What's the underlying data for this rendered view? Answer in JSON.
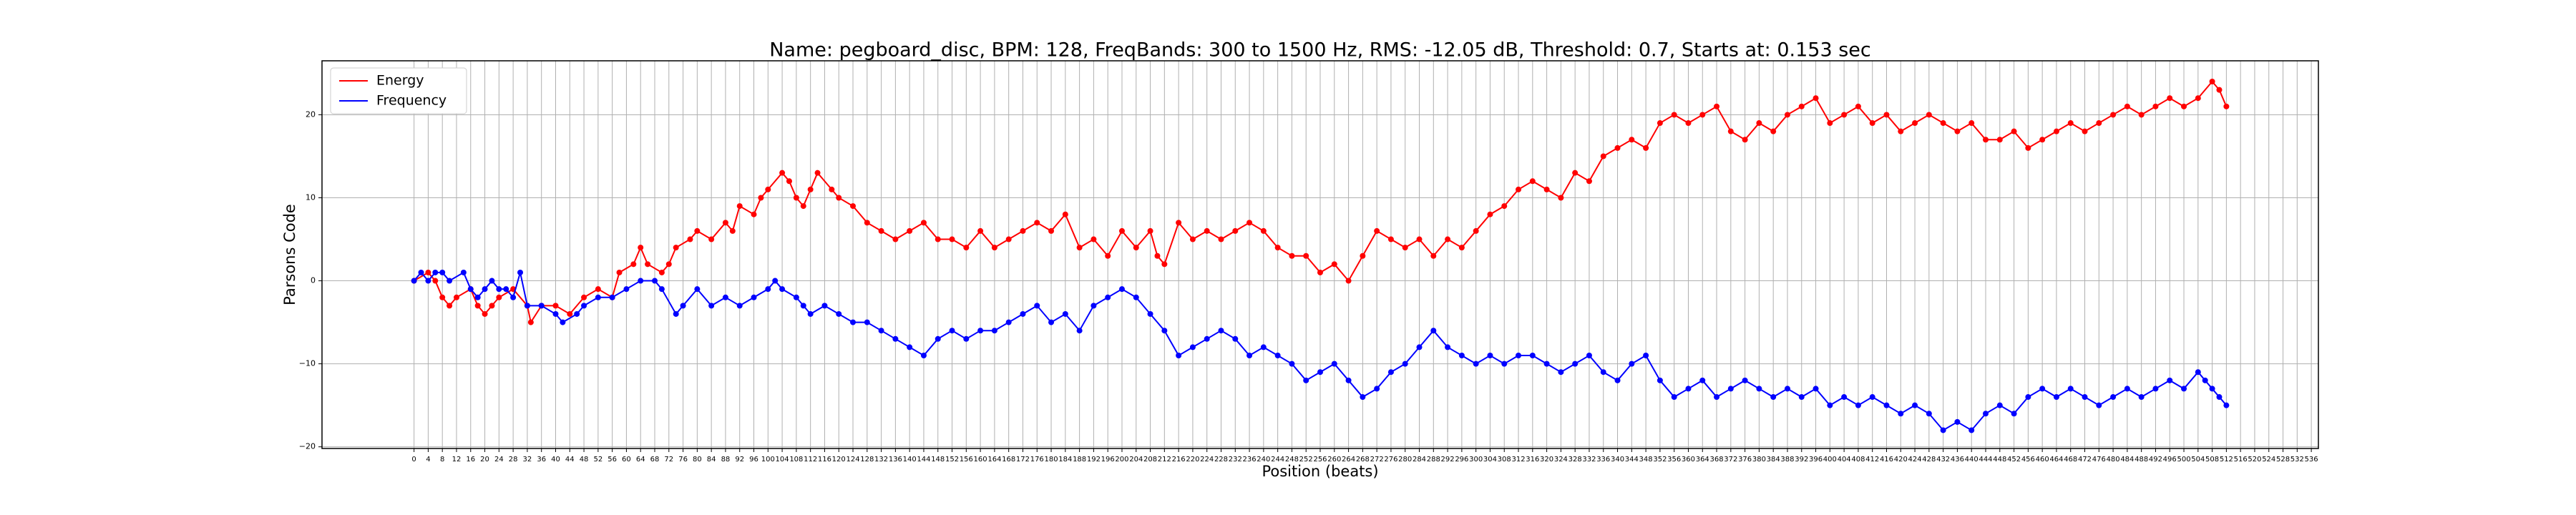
{
  "chart_data": {
    "type": "line",
    "title": "Name: pegboard_disc, BPM: 128, FreqBands: 300 to 1500 Hz, RMS: -12.05 dB, Threshold: 0.7, Starts at: 0.153 sec",
    "x_label": "Position (beats)",
    "y_label": "Parsons Code",
    "xlim": [
      -26,
      538
    ],
    "ylim": [
      -20.2,
      26.5
    ],
    "xticks": [
      0,
      4,
      8,
      12,
      16,
      20,
      24,
      28,
      32,
      36,
      40,
      44,
      48,
      52,
      56,
      60,
      64,
      68,
      72,
      76,
      80,
      84,
      88,
      92,
      96,
      100,
      104,
      108,
      112,
      116,
      120,
      124,
      128,
      132,
      136,
      140,
      144,
      148,
      152,
      156,
      160,
      164,
      168,
      172,
      176,
      180,
      184,
      188,
      192,
      196,
      200,
      204,
      208,
      212,
      216,
      220,
      224,
      228,
      232,
      236,
      240,
      244,
      248,
      252,
      256,
      260,
      264,
      268,
      272,
      276,
      280,
      284,
      288,
      292,
      296,
      300,
      304,
      308,
      312,
      316,
      320,
      324,
      328,
      332,
      336,
      340,
      344,
      348,
      352,
      356,
      360,
      364,
      368,
      372,
      376,
      380,
      384,
      388,
      392,
      396,
      400,
      404,
      408,
      412,
      416,
      420,
      424,
      428,
      432,
      436,
      440,
      444,
      448,
      452,
      456,
      460,
      464,
      468,
      472,
      476,
      480,
      484,
      488,
      492,
      496,
      500,
      504,
      508,
      512,
      516,
      520,
      524,
      528,
      532,
      536
    ],
    "yticks": [
      {
        "value": -20,
        "label": "−20"
      },
      {
        "value": -10,
        "label": "−10"
      },
      0,
      10,
      20
    ],
    "grid": true,
    "legend": "upper left",
    "series": [
      {
        "name": "Energy",
        "color": "#ff0000",
        "x": [
          0,
          4,
          6,
          8,
          10,
          12,
          16,
          18,
          20,
          22,
          24,
          28,
          32,
          33,
          36,
          40,
          44,
          48,
          52,
          56,
          58,
          62,
          64,
          66,
          70,
          72,
          74,
          78,
          80,
          84,
          88,
          90,
          92,
          96,
          98,
          100,
          104,
          106,
          108,
          110,
          112,
          114,
          118,
          120,
          124,
          128,
          132,
          136,
          140,
          144,
          148,
          152,
          156,
          160,
          164,
          168,
          172,
          176,
          180,
          184,
          188,
          192,
          196,
          200,
          204,
          208,
          210,
          212,
          216,
          220,
          224,
          228,
          232,
          236,
          240,
          244,
          248,
          252,
          256,
          260,
          264,
          268,
          272,
          276,
          280,
          284,
          288,
          292,
          296,
          300,
          304,
          308,
          312,
          316,
          320,
          324,
          328,
          332,
          336,
          340,
          344,
          348,
          352,
          356,
          360,
          364,
          368,
          372,
          376,
          380,
          384,
          388,
          392,
          396,
          400,
          404,
          408,
          412,
          416,
          420,
          424,
          428,
          432,
          436,
          440,
          444,
          448,
          452,
          456,
          460,
          464,
          468,
          472,
          476,
          480,
          484,
          488,
          492,
          496,
          500,
          504,
          508,
          510,
          512
        ],
        "values": [
          0,
          1,
          0,
          -2,
          -3,
          -2,
          -1,
          -3,
          -4,
          -3,
          -2,
          -1,
          -3,
          -5,
          -3,
          -3,
          -4,
          -2,
          -1,
          -2,
          1,
          2,
          4,
          2,
          1,
          2,
          4,
          5,
          6,
          5,
          7,
          6,
          9,
          8,
          10,
          11,
          13,
          12,
          10,
          9,
          11,
          13,
          11,
          10,
          9,
          7,
          6,
          5,
          6,
          7,
          5,
          5,
          4,
          6,
          4,
          5,
          6,
          7,
          6,
          8,
          4,
          5,
          3,
          6,
          4,
          6,
          3,
          2,
          7,
          5,
          6,
          5,
          6,
          7,
          6,
          4,
          3,
          3,
          1,
          2,
          0,
          3,
          6,
          5,
          4,
          5,
          3,
          5,
          4,
          6,
          8,
          9,
          11,
          12,
          11,
          10,
          13,
          12,
          15,
          16,
          17,
          16,
          19,
          20,
          19,
          20,
          21,
          18,
          17,
          19,
          18,
          20,
          21,
          22,
          19,
          20,
          21,
          19,
          20,
          18,
          19,
          20,
          19,
          18,
          19,
          17,
          17,
          18,
          16,
          17,
          18,
          19,
          18,
          19,
          20,
          21,
          20,
          21,
          22,
          21,
          22,
          24,
          23,
          21
        ]
      },
      {
        "name": "Frequency",
        "color": "#0000ff",
        "x": [
          0,
          2,
          4,
          6,
          8,
          10,
          14,
          16,
          18,
          20,
          22,
          24,
          26,
          28,
          30,
          32,
          36,
          40,
          42,
          46,
          48,
          52,
          56,
          60,
          64,
          68,
          70,
          74,
          76,
          80,
          84,
          88,
          92,
          96,
          100,
          102,
          104,
          108,
          110,
          112,
          116,
          120,
          124,
          128,
          132,
          136,
          140,
          144,
          148,
          152,
          156,
          160,
          164,
          168,
          172,
          176,
          180,
          184,
          188,
          192,
          196,
          200,
          204,
          208,
          212,
          216,
          220,
          224,
          228,
          232,
          236,
          240,
          244,
          248,
          252,
          256,
          260,
          264,
          268,
          272,
          276,
          280,
          284,
          288,
          292,
          296,
          300,
          304,
          308,
          312,
          316,
          320,
          324,
          328,
          332,
          336,
          340,
          344,
          348,
          352,
          356,
          360,
          364,
          368,
          372,
          376,
          380,
          384,
          388,
          392,
          396,
          400,
          404,
          408,
          412,
          416,
          420,
          424,
          428,
          432,
          436,
          440,
          444,
          448,
          452,
          456,
          460,
          464,
          468,
          472,
          476,
          480,
          484,
          488,
          492,
          496,
          500,
          504,
          506,
          508,
          510,
          512
        ],
        "values": [
          0,
          1,
          0,
          1,
          1,
          0,
          1,
          -1,
          -2,
          -1,
          0,
          -1,
          -1,
          -2,
          1,
          -3,
          -3,
          -4,
          -5,
          -4,
          -3,
          -2,
          -2,
          -1,
          0,
          0,
          -1,
          -4,
          -3,
          -1,
          -3,
          -2,
          -3,
          -2,
          -1,
          0,
          -1,
          -2,
          -3,
          -4,
          -3,
          -4,
          -5,
          -5,
          -6,
          -7,
          -8,
          -9,
          -7,
          -6,
          -7,
          -6,
          -6,
          -5,
          -4,
          -3,
          -5,
          -4,
          -6,
          -3,
          -2,
          -1,
          -2,
          -4,
          -6,
          -9,
          -8,
          -7,
          -6,
          -7,
          -9,
          -8,
          -9,
          -10,
          -12,
          -11,
          -10,
          -12,
          -14,
          -13,
          -11,
          -10,
          -8,
          -6,
          -8,
          -9,
          -10,
          -9,
          -10,
          -9,
          -9,
          -10,
          -11,
          -10,
          -9,
          -11,
          -12,
          -10,
          -9,
          -12,
          -14,
          -13,
          -12,
          -14,
          -13,
          -12,
          -13,
          -14,
          -13,
          -14,
          -13,
          -15,
          -14,
          -15,
          -14,
          -15,
          -16,
          -15,
          -16,
          -18,
          -17,
          -18,
          -16,
          -15,
          -16,
          -14,
          -13,
          -14,
          -13,
          -14,
          -15,
          -14,
          -13,
          -14,
          -13,
          -12,
          -13,
          -11,
          -12,
          -13,
          -14,
          -15
        ]
      }
    ]
  }
}
